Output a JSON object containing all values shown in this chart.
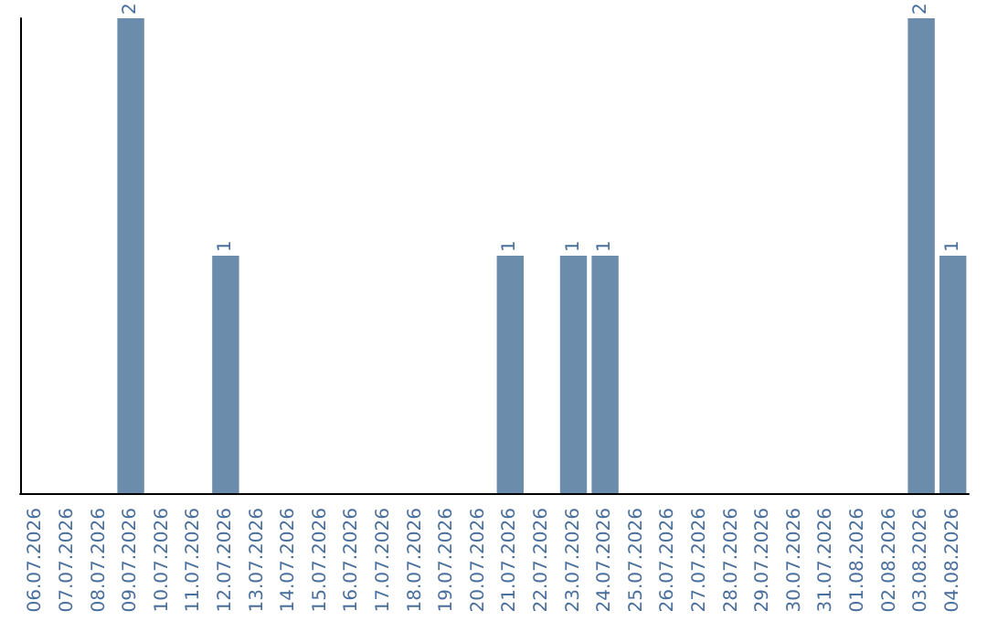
{
  "chart_data": {
    "type": "bar",
    "categories": [
      "06.07.2026",
      "07.07.2026",
      "08.07.2026",
      "09.07.2026",
      "10.07.2026",
      "11.07.2026",
      "12.07.2026",
      "13.07.2026",
      "14.07.2026",
      "15.07.2026",
      "16.07.2026",
      "17.07.2026",
      "18.07.2026",
      "19.07.2026",
      "20.07.2026",
      "21.07.2026",
      "22.07.2026",
      "23.07.2026",
      "24.07.2026",
      "25.07.2026",
      "26.07.2026",
      "27.07.2026",
      "28.07.2026",
      "29.07.2026",
      "30.07.2026",
      "31.07.2026",
      "01.08.2026",
      "02.08.2026",
      "03.08.2026",
      "04.08.2026"
    ],
    "values": [
      0,
      0,
      0,
      2,
      0,
      0,
      1,
      0,
      0,
      0,
      0,
      0,
      0,
      0,
      0,
      1,
      0,
      1,
      1,
      0,
      0,
      0,
      0,
      0,
      0,
      0,
      0,
      0,
      2,
      1
    ],
    "value_labels": [
      null,
      null,
      null,
      "2",
      null,
      null,
      "1",
      null,
      null,
      null,
      null,
      null,
      null,
      null,
      null,
      "1",
      null,
      "1",
      "1",
      null,
      null,
      null,
      null,
      null,
      null,
      null,
      null,
      null,
      "2",
      "1"
    ],
    "color": "#6b8cab",
    "ylim": [
      0,
      2
    ],
    "tick_labels": "x"
  }
}
